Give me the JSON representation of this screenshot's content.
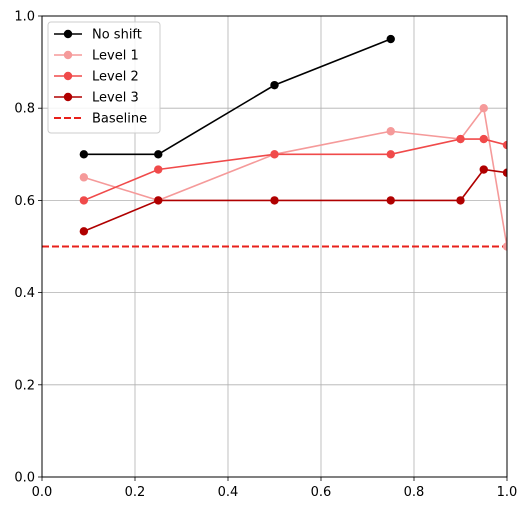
{
  "chart_data": {
    "type": "line",
    "title": "",
    "xlabel": "",
    "ylabel": "",
    "xlim": [
      0,
      1
    ],
    "ylim": [
      0,
      1
    ],
    "xticks": [
      "0.0",
      "0.2",
      "0.4",
      "0.6",
      "0.8",
      "1.0"
    ],
    "yticks": [
      "0.0",
      "0.2",
      "0.4",
      "0.6",
      "0.8",
      "1.0"
    ],
    "grid": true,
    "legend_position": "top-left",
    "series": [
      {
        "name": "No shift",
        "color": "#000000",
        "marker": "circle",
        "x": [
          0.09,
          0.25,
          0.5,
          0.75
        ],
        "y": [
          0.7,
          0.7,
          0.85,
          0.95
        ]
      },
      {
        "name": "Level 1",
        "color": "#f59a9a",
        "marker": "circle",
        "x": [
          0.09,
          0.25,
          0.5,
          0.75,
          0.9,
          0.95,
          1.0
        ],
        "y": [
          0.65,
          0.6,
          0.7,
          0.75,
          0.733,
          0.8,
          0.5
        ]
      },
      {
        "name": "Level 2",
        "color": "#f04a4a",
        "marker": "circle",
        "x": [
          0.09,
          0.25,
          0.5,
          0.75,
          0.9,
          0.95,
          1.0
        ],
        "y": [
          0.6,
          0.667,
          0.7,
          0.7,
          0.733,
          0.733,
          0.72
        ]
      },
      {
        "name": "Level 3",
        "color": "#b00000",
        "marker": "circle",
        "x": [
          0.09,
          0.25,
          0.5,
          0.75,
          0.9,
          0.95,
          1.0
        ],
        "y": [
          0.533,
          0.6,
          0.6,
          0.6,
          0.6,
          0.667,
          0.66
        ]
      }
    ],
    "baseline": {
      "name": "Baseline",
      "y": 0.5,
      "color": "#e8201a",
      "style": "dashed"
    }
  }
}
